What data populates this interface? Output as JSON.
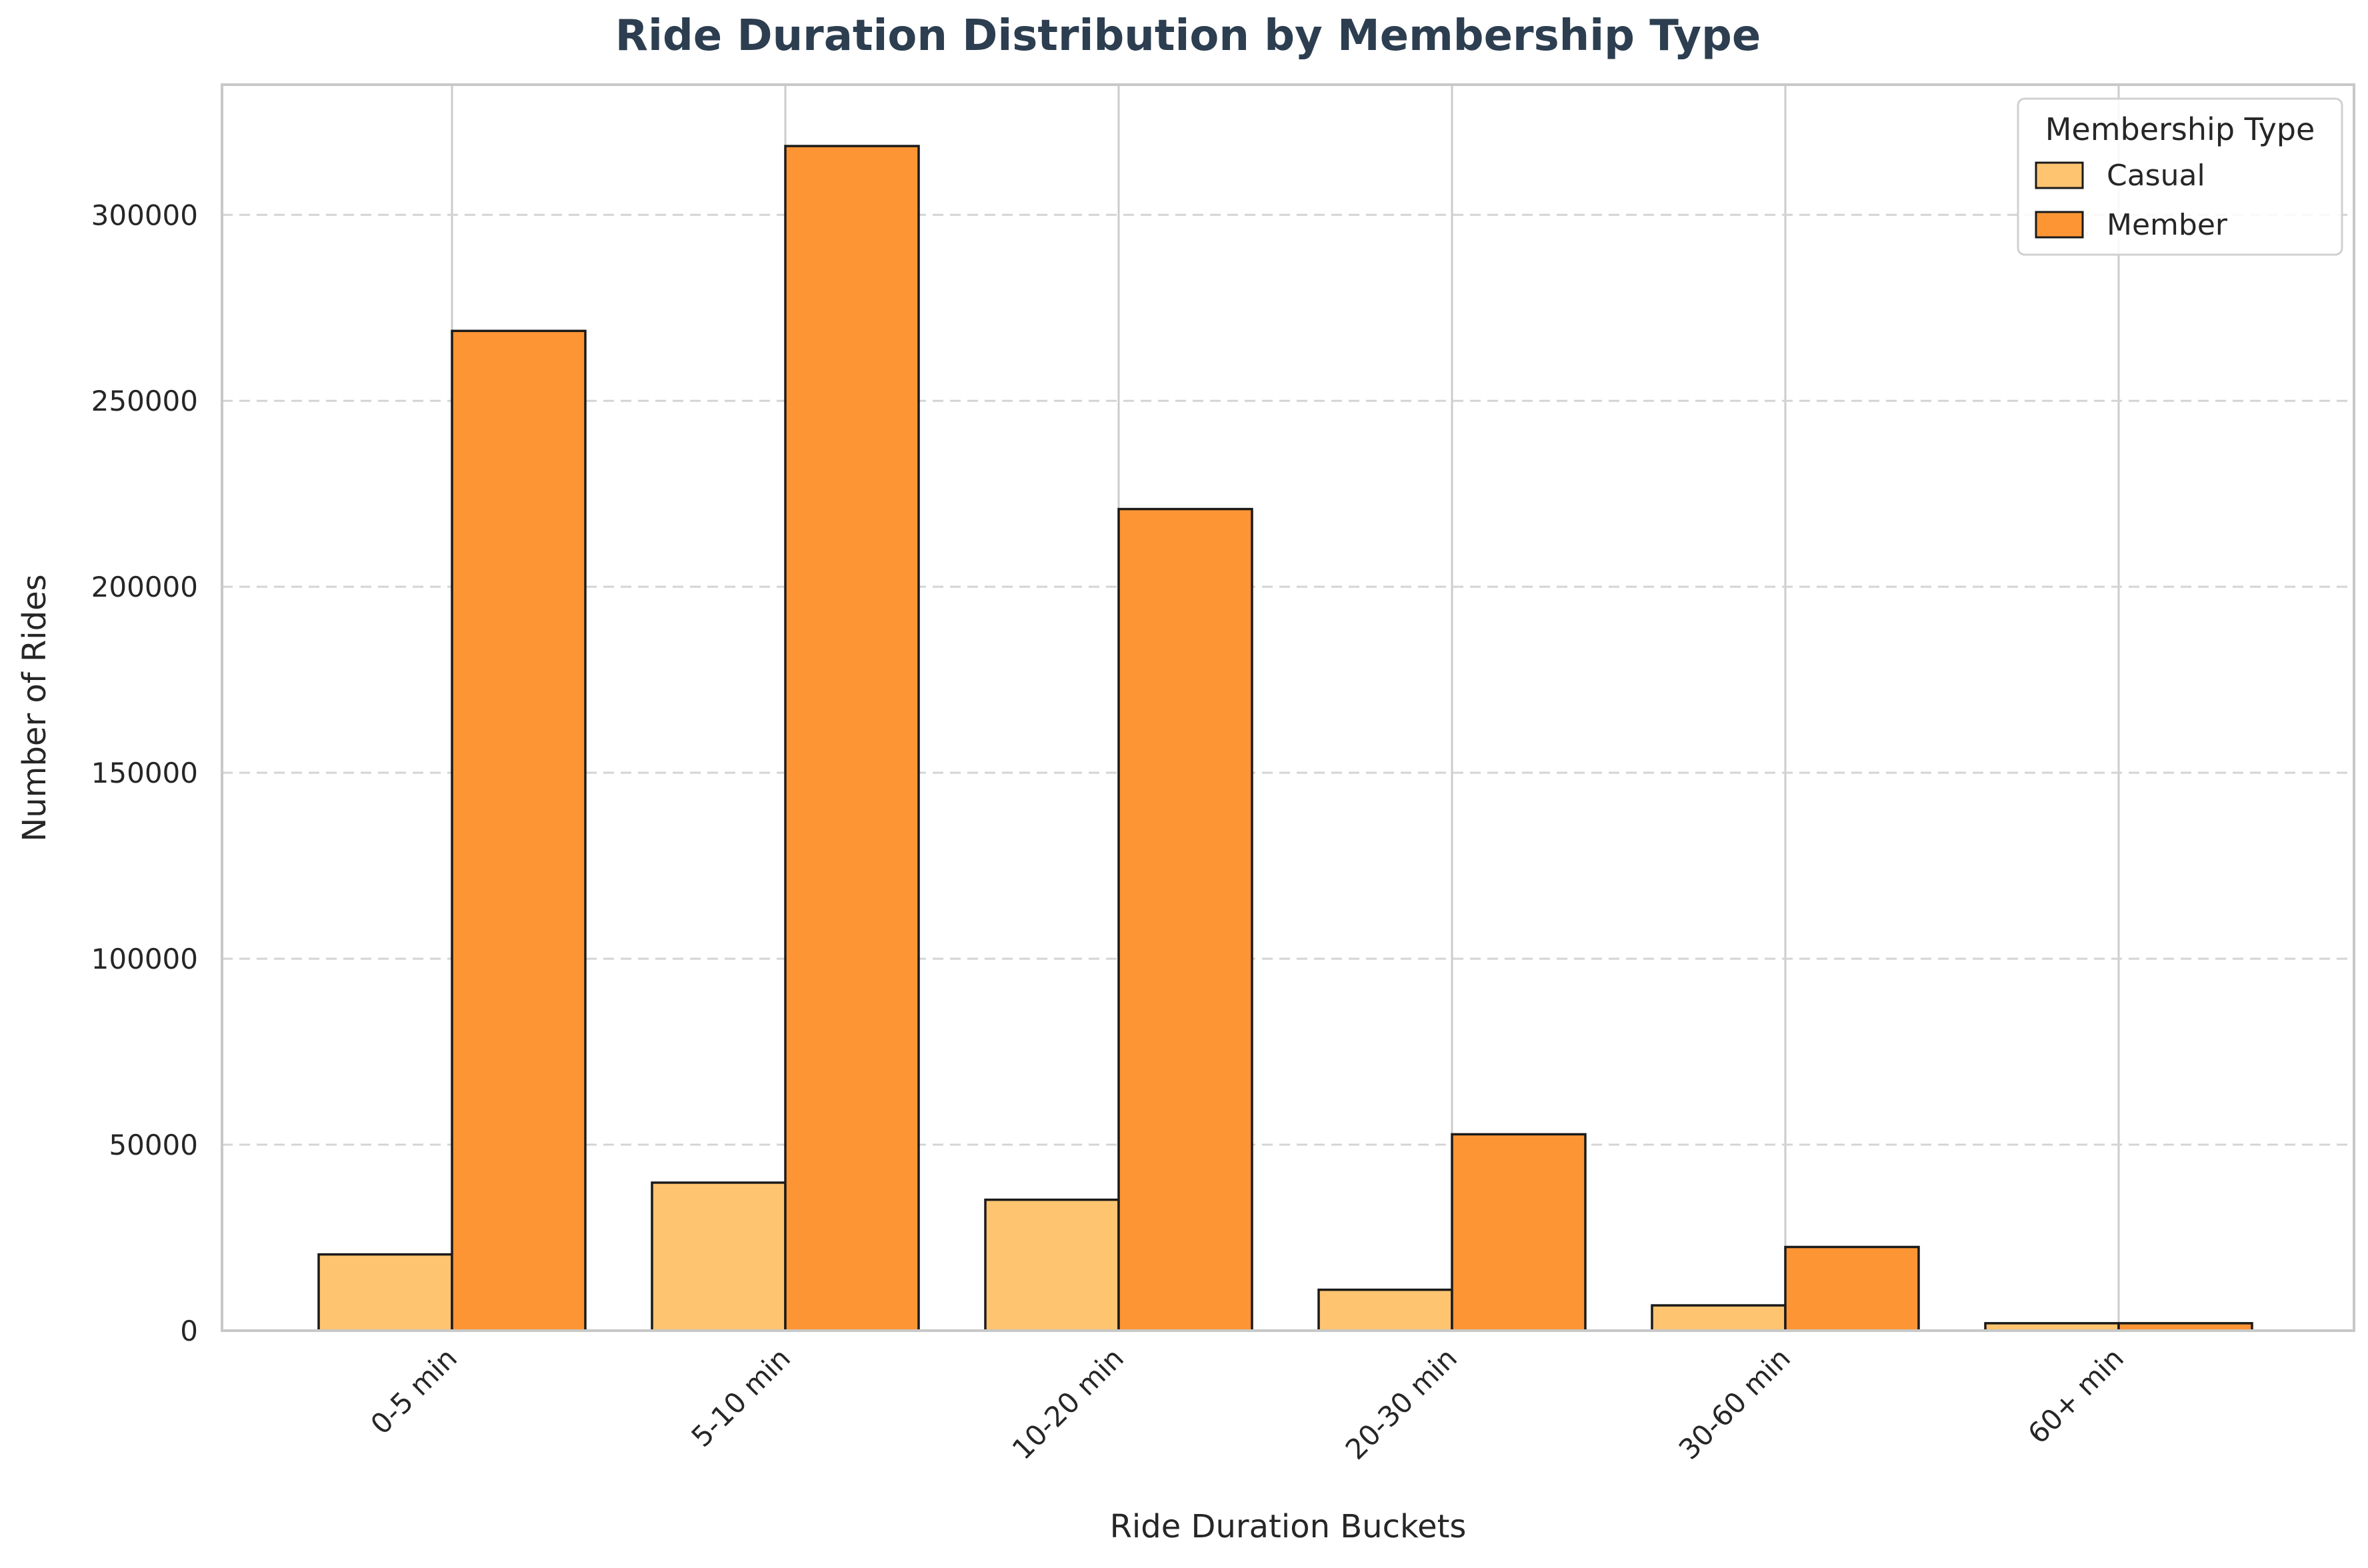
{
  "chart_data": {
    "type": "bar",
    "title": "Ride Duration Distribution by Membership Type",
    "xlabel": "Ride Duration Buckets",
    "ylabel": "Number of Rides",
    "categories": [
      "0-5 min",
      "5-10 min",
      "10-20 min",
      "20-30 min",
      "30-60 min",
      "60+ min"
    ],
    "series": [
      {
        "name": "Casual",
        "color": "#fec470",
        "values": [
          20500,
          39800,
          35200,
          11000,
          6800,
          2000
        ]
      },
      {
        "name": "Member",
        "color": "#fe9534",
        "values": [
          268800,
          318500,
          220900,
          52800,
          22500,
          2000
        ]
      }
    ],
    "ylim": [
      0,
      335000
    ],
    "yticks": [
      "0",
      "50000",
      "100000",
      "150000",
      "200000",
      "250000",
      "300000"
    ],
    "legend": {
      "title": "Membership Type",
      "position": "top-right"
    },
    "grid": {
      "y": "dashed",
      "x": "solid"
    }
  }
}
